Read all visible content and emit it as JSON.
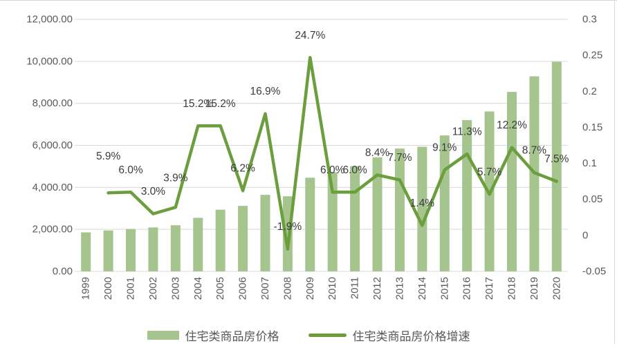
{
  "chart_data": {
    "type": "bar",
    "subtype": "combo-bar-line-dual-axis",
    "categories": [
      "1999",
      "2000",
      "2001",
      "2002",
      "2003",
      "2004",
      "2005",
      "2006",
      "2007",
      "2008",
      "2009",
      "2010",
      "2011",
      "2012",
      "2013",
      "2014",
      "2015",
      "2016",
      "2017",
      "2018",
      "2019",
      "2020"
    ],
    "series": [
      {
        "name": "住宅类商品房价格",
        "type": "bar",
        "axis": "left",
        "color": "#a6c48e",
        "values": [
          1857,
          1948,
          2017,
          2092,
          2197,
          2549,
          2937,
          3119,
          3645,
          3576,
          4459,
          4725,
          5011,
          5430,
          5850,
          5933,
          6473,
          7203,
          7614,
          8544,
          9287,
          9980
        ]
      },
      {
        "name": "住宅类商品房价格增速",
        "type": "line",
        "axis": "right",
        "color": "#6b9e3d",
        "values": [
          null,
          0.059,
          0.06,
          0.03,
          0.039,
          0.152,
          0.152,
          0.062,
          0.169,
          -0.019,
          0.247,
          0.06,
          0.06,
          0.084,
          0.077,
          0.014,
          0.091,
          0.113,
          0.057,
          0.122,
          0.087,
          0.075
        ],
        "point_labels": [
          null,
          "5.9%",
          "6.0%",
          "3.0%",
          "3.9%",
          "15.2%",
          "15.2%",
          "6.2%",
          "16.9%",
          "-1.9%",
          "24.7%",
          "6.0%",
          "6.0%",
          "8.4%",
          "7.7%",
          "1.4%",
          "9.1%",
          "11.3%",
          "5.7%",
          "12.2%",
          "8.7%",
          "7.5%"
        ]
      }
    ],
    "left_axis": {
      "min": 0,
      "max": 12000,
      "step": 2000,
      "tick_labels": [
        "0.00",
        "2,000.00",
        "4,000.00",
        "6,000.00",
        "8,000.00",
        "10,000.00",
        "12,000.00"
      ]
    },
    "right_axis": {
      "min": -0.05,
      "max": 0.3,
      "step": 0.05,
      "tick_labels": [
        "-0.05",
        "0",
        "0.05",
        "0.1",
        "0.15",
        "0.2",
        "0.25",
        "0.3"
      ]
    },
    "title": "",
    "xlabel": "",
    "ylabel": "",
    "grid": true,
    "legend_position": "bottom"
  },
  "legend": {
    "bar_label": "住宅类商品房价格",
    "line_label": "住宅类商品房价格增速"
  },
  "colors": {
    "bar_fill": "#a6c48e",
    "line_stroke": "#6b9e3d",
    "axis_text": "#595959",
    "data_label_text": "#3b3b3b",
    "gridline": "#d9d9d9"
  }
}
